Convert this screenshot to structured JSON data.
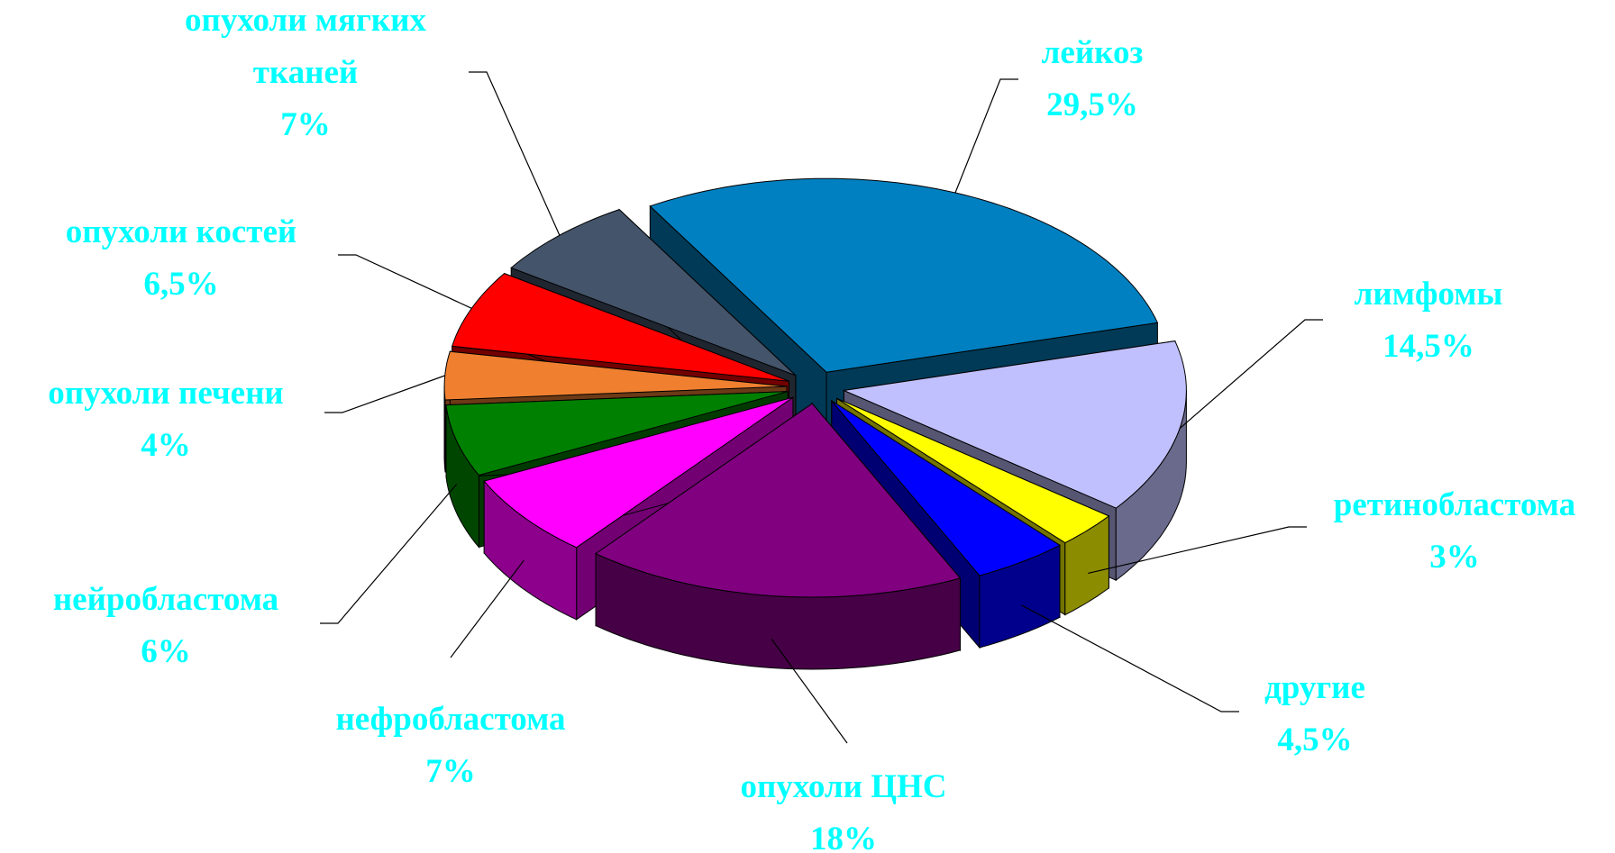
{
  "chart_data": {
    "type": "pie",
    "categories": [
      "лейкоз",
      "лимфомы",
      "ретинобластома",
      "другие",
      "опухоли ЦНС",
      "нефробластома",
      "нейробластома",
      "опухоли печени",
      "опухоли костей",
      "опухоли мягких тканей"
    ],
    "values": [
      29.5,
      14.5,
      3,
      4.5,
      18,
      7,
      6,
      4,
      6.5,
      7
    ],
    "value_labels": [
      "29,5%",
      "14,5%",
      "3%",
      "4,5%",
      "18%",
      "7%",
      "6%",
      "4%",
      "6,5%",
      "7%"
    ],
    "colors": [
      "#0080c0",
      "#c0c0ff",
      "#ffff00",
      "#0000ff",
      "#800080",
      "#ff00ff",
      "#008000",
      "#f08030",
      "#ff0000",
      "#44546a"
    ]
  }
}
